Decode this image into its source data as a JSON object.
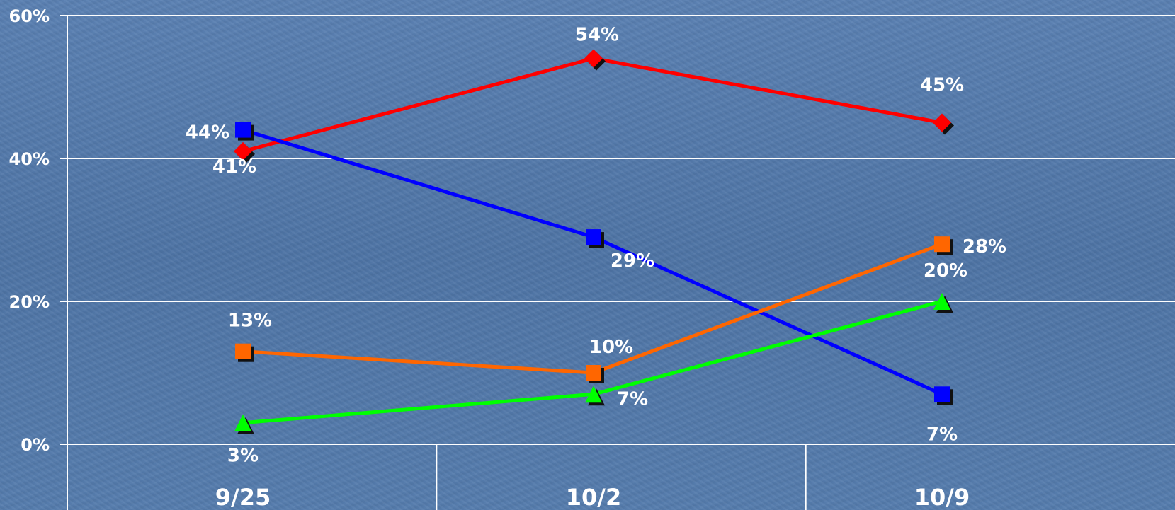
{
  "chart_data": {
    "type": "line",
    "categories": [
      "9/25",
      "10/2",
      "10/9"
    ],
    "ylim": [
      0,
      60
    ],
    "yticks": [
      "0%",
      "20%",
      "40%",
      "60%"
    ],
    "grid": true,
    "series": [
      {
        "values": [
          41,
          54,
          45
        ],
        "labels": [
          "41%",
          "54%",
          "45%"
        ],
        "color": "#ff0000",
        "marker": "diamond"
      },
      {
        "values": [
          44,
          29,
          7
        ],
        "labels": [
          "44%",
          "29%",
          "7%"
        ],
        "color": "#0000ff",
        "marker": "square"
      },
      {
        "values": [
          13,
          10,
          28
        ],
        "labels": [
          "13%",
          "10%",
          "28%"
        ],
        "color": "#ff6600",
        "marker": "square"
      },
      {
        "values": [
          3,
          7,
          20
        ],
        "labels": [
          "3%",
          "7%",
          "20%"
        ],
        "color": "#00ff00",
        "marker": "triangle"
      }
    ]
  }
}
